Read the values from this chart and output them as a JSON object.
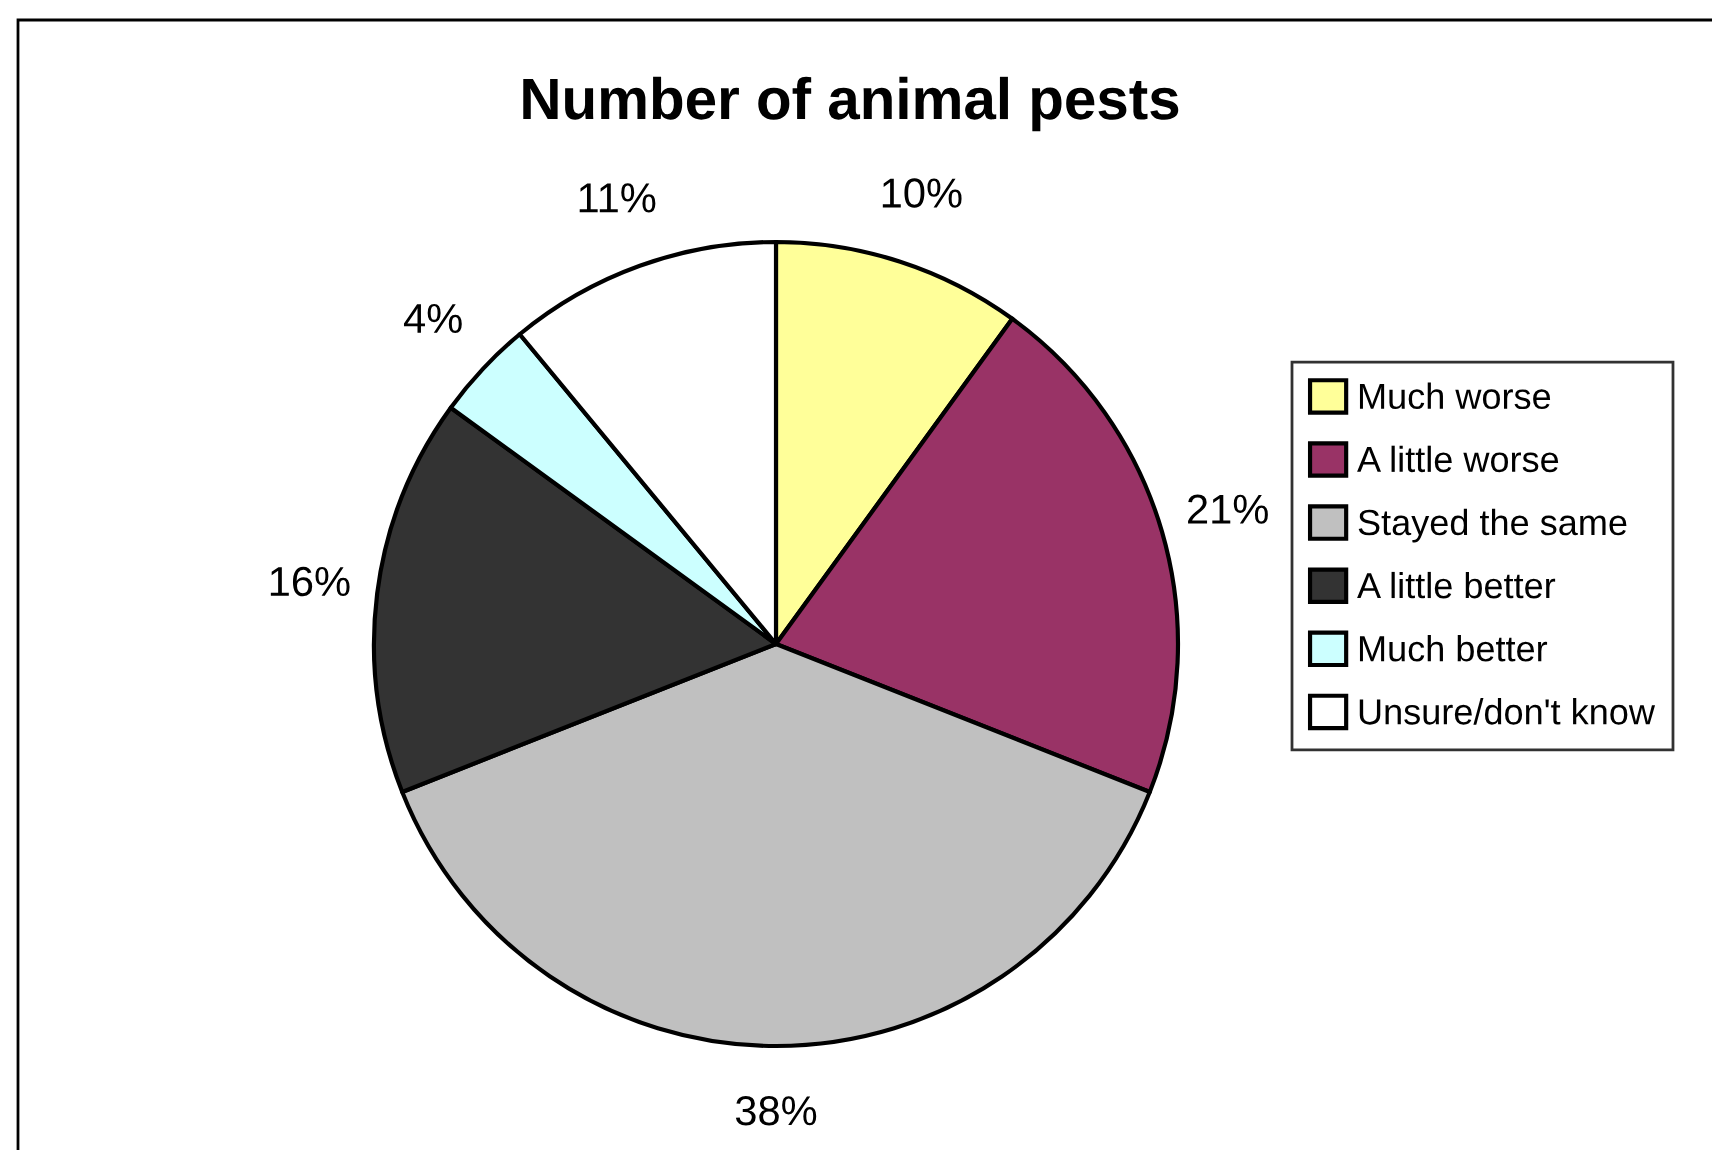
{
  "chart_data": {
    "type": "pie",
    "title": "Number of animal pests",
    "categories": [
      "Much worse",
      "A little worse",
      "Stayed the same",
      "A little better",
      "Much better",
      "Unsure/don't know"
    ],
    "values": [
      10,
      21,
      38,
      16,
      4,
      11
    ],
    "colors": [
      "#ffff99",
      "#993366",
      "#c0c0c0",
      "#333333",
      "#ccffff",
      "#ffffff"
    ],
    "value_labels": [
      "10%",
      "21%",
      "38%",
      "16%",
      "4%",
      "11%"
    ],
    "legend": "right"
  }
}
